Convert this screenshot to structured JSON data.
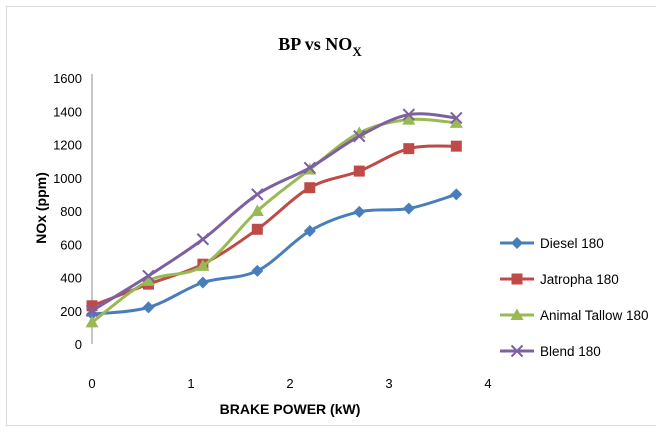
{
  "chart_data": {
    "type": "line",
    "title": "BP vs NO",
    "title_subscript": "X",
    "xlabel": "BRAKE POWER (kW)",
    "ylabel": "NOx (ppm)",
    "xlim": [
      0,
      4
    ],
    "ylim": [
      0,
      1600
    ],
    "x_ticks": [
      "0",
      "1",
      "2",
      "3",
      "4"
    ],
    "y_ticks": [
      "0",
      "200",
      "400",
      "600",
      "800",
      "1000",
      "1200",
      "1400",
      "1600"
    ],
    "legend_position": "right",
    "series": [
      {
        "name": "Diesel 180",
        "color": "#4a7ebb",
        "marker": "diamond",
        "x": [
          0,
          0.57,
          1.12,
          1.67,
          2.2,
          2.7,
          3.2,
          3.68
        ],
        "y": [
          180,
          220,
          370,
          440,
          680,
          795,
          815,
          900
        ]
      },
      {
        "name": "Jatropha 180",
        "color": "#be4b48",
        "marker": "square",
        "x": [
          0,
          0.57,
          1.12,
          1.67,
          2.2,
          2.7,
          3.2,
          3.68
        ],
        "y": [
          230,
          360,
          480,
          690,
          940,
          1040,
          1175,
          1190
        ]
      },
      {
        "name": "Animal Tallow 180",
        "color": "#98b954",
        "marker": "triangle",
        "x": [
          0,
          0.57,
          1.12,
          1.67,
          2.2,
          2.7,
          3.2,
          3.68
        ],
        "y": [
          130,
          380,
          470,
          800,
          1050,
          1270,
          1350,
          1330
        ]
      },
      {
        "name": "Blend 180",
        "color": "#7d60a0",
        "marker": "x",
        "x": [
          0,
          0.57,
          1.12,
          1.67,
          2.2,
          2.7,
          3.2,
          3.68
        ],
        "y": [
          200,
          410,
          630,
          900,
          1060,
          1250,
          1380,
          1360
        ]
      }
    ]
  }
}
